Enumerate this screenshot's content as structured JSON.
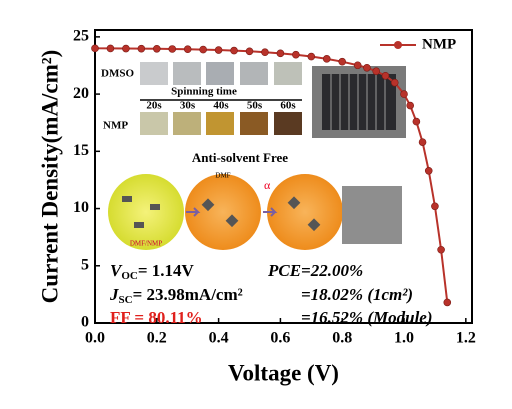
{
  "chart_data": {
    "type": "line",
    "x_label": "Voltage (V)",
    "y_label": "Current Density(mA/cm²)",
    "x": [
      0,
      0.05,
      0.1,
      0.15,
      0.2,
      0.25,
      0.3,
      0.35,
      0.4,
      0.45,
      0.5,
      0.55,
      0.6,
      0.65,
      0.7,
      0.75,
      0.8,
      0.85,
      0.88,
      0.91,
      0.94,
      0.97,
      1.0,
      1.02,
      1.04,
      1.06,
      1.08,
      1.1,
      1.12,
      1.14
    ],
    "series": [
      {
        "name": "NMP",
        "color": "#b8322a",
        "values": [
          24.0,
          23.99,
          23.98,
          23.97,
          23.96,
          23.94,
          23.92,
          23.89,
          23.85,
          23.8,
          23.74,
          23.66,
          23.56,
          23.44,
          23.28,
          23.08,
          22.83,
          22.52,
          22.3,
          22.0,
          21.6,
          21.0,
          20.0,
          19.0,
          17.6,
          15.8,
          13.3,
          10.2,
          6.4,
          1.8
        ]
      }
    ],
    "xlim": [
      0,
      1.22
    ],
    "ylim": [
      0,
      25.6
    ],
    "xticks": [
      {
        "value": 0,
        "label": "0.0"
      },
      0.2,
      0.4,
      0.6,
      0.8,
      {
        "value": 1,
        "label": "1.0"
      },
      1.2
    ],
    "yticks": [
      0,
      5,
      10,
      15,
      20,
      25
    ],
    "legend": "top-right",
    "insets": {
      "dmso": "DMSO",
      "nmp": "NMP",
      "spinning_time": "Spinning time",
      "times": [
        "20s",
        "30s",
        "40s",
        "50s",
        "60s"
      ],
      "anti_solvent": "Anti-solvent Free",
      "dmf_nmp": "DMF/NMP",
      "dmf": "DMF",
      "alpha": "α"
    },
    "annotations": {
      "voc": {
        "symbol": "V",
        "sub": "OC",
        "text": "= 1.14V"
      },
      "jsc": {
        "symbol": "J",
        "sub": "SC",
        "text": "= 23.98mA/cm²"
      },
      "ff": "FF = 80.11%",
      "pce": "PCE=22.00%",
      "pce_1cm": "=18.02% (1cm²)",
      "pce_module": "=16.52% (Module)"
    }
  }
}
